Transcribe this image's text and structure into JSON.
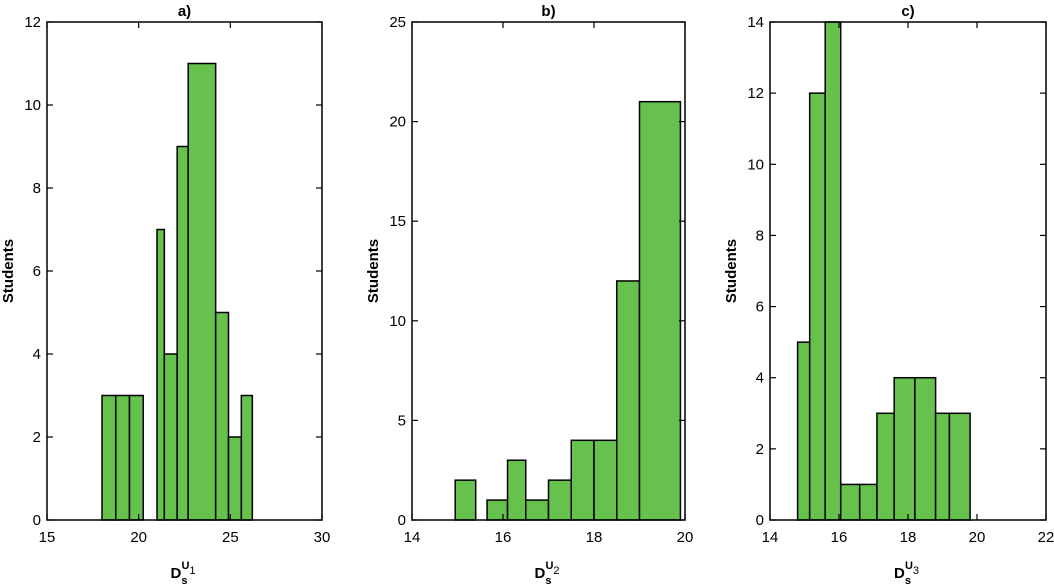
{
  "chart_data": [
    {
      "type": "bar",
      "title": "a)",
      "ylabel": "Students",
      "xlabel": {
        "base": "D",
        "sub": "s",
        "sup": "U",
        "supsub": "1"
      },
      "xlim": [
        15,
        30
      ],
      "ylim": [
        0,
        12
      ],
      "xticks": [
        "15",
        "20",
        "25",
        "30"
      ],
      "yticks": [
        "0",
        "2",
        "4",
        "6",
        "8",
        "10",
        "12"
      ],
      "bar_color": "#66c14d",
      "bins": [
        {
          "x0": 18.0,
          "x1": 18.75,
          "count": 3
        },
        {
          "x0": 18.75,
          "x1": 19.5,
          "count": 3
        },
        {
          "x0": 19.5,
          "x1": 20.25,
          "count": 3
        },
        {
          "x0": 21.0,
          "x1": 21.4,
          "count": 7
        },
        {
          "x0": 21.4,
          "x1": 22.1,
          "count": 4
        },
        {
          "x0": 22.1,
          "x1": 22.7,
          "count": 9
        },
        {
          "x0": 22.7,
          "x1": 24.2,
          "count": 11
        },
        {
          "x0": 24.2,
          "x1": 24.9,
          "count": 5
        },
        {
          "x0": 24.9,
          "x1": 25.6,
          "count": 2
        },
        {
          "x0": 25.6,
          "x1": 26.2,
          "count": 3
        }
      ]
    },
    {
      "type": "bar",
      "title": "b)",
      "ylabel": "Students",
      "xlabel": {
        "base": "D",
        "sub": "s",
        "sup": "U",
        "supsub": "2"
      },
      "xlim": [
        14,
        20
      ],
      "ylim": [
        0,
        25
      ],
      "xticks": [
        "14",
        "16",
        "18",
        "20"
      ],
      "yticks": [
        "0",
        "5",
        "10",
        "15",
        "20",
        "25"
      ],
      "bar_color": "#66c14d",
      "bins": [
        {
          "x0": 14.95,
          "x1": 15.4,
          "count": 2
        },
        {
          "x0": 15.65,
          "x1": 16.1,
          "count": 1
        },
        {
          "x0": 16.1,
          "x1": 16.5,
          "count": 3
        },
        {
          "x0": 16.5,
          "x1": 17.0,
          "count": 1
        },
        {
          "x0": 17.0,
          "x1": 17.5,
          "count": 2
        },
        {
          "x0": 17.5,
          "x1": 18.0,
          "count": 4
        },
        {
          "x0": 18.0,
          "x1": 18.5,
          "count": 4
        },
        {
          "x0": 18.5,
          "x1": 19.0,
          "count": 12
        },
        {
          "x0": 19.0,
          "x1": 19.9,
          "count": 21
        }
      ]
    },
    {
      "type": "bar",
      "title": "c)",
      "ylabel": "Students",
      "xlabel": {
        "base": "D",
        "sub": "s",
        "sup": "U",
        "supsub": "3"
      },
      "xlim": [
        14,
        22
      ],
      "ylim": [
        0,
        14
      ],
      "xticks": [
        "14",
        "16",
        "18",
        "20",
        "22"
      ],
      "yticks": [
        "0",
        "2",
        "4",
        "6",
        "8",
        "10",
        "12",
        "14"
      ],
      "bar_color": "#66c14d",
      "bins": [
        {
          "x0": 14.8,
          "x1": 15.15,
          "count": 5
        },
        {
          "x0": 15.15,
          "x1": 15.6,
          "count": 12
        },
        {
          "x0": 15.6,
          "x1": 16.05,
          "count": 14
        },
        {
          "x0": 16.05,
          "x1": 16.6,
          "count": 1
        },
        {
          "x0": 16.6,
          "x1": 17.1,
          "count": 1
        },
        {
          "x0": 17.1,
          "x1": 17.6,
          "count": 3
        },
        {
          "x0": 17.6,
          "x1": 18.2,
          "count": 4
        },
        {
          "x0": 18.2,
          "x1": 18.8,
          "count": 4
        },
        {
          "x0": 18.8,
          "x1": 19.2,
          "count": 3
        },
        {
          "x0": 19.2,
          "x1": 19.8,
          "count": 3
        }
      ]
    }
  ]
}
